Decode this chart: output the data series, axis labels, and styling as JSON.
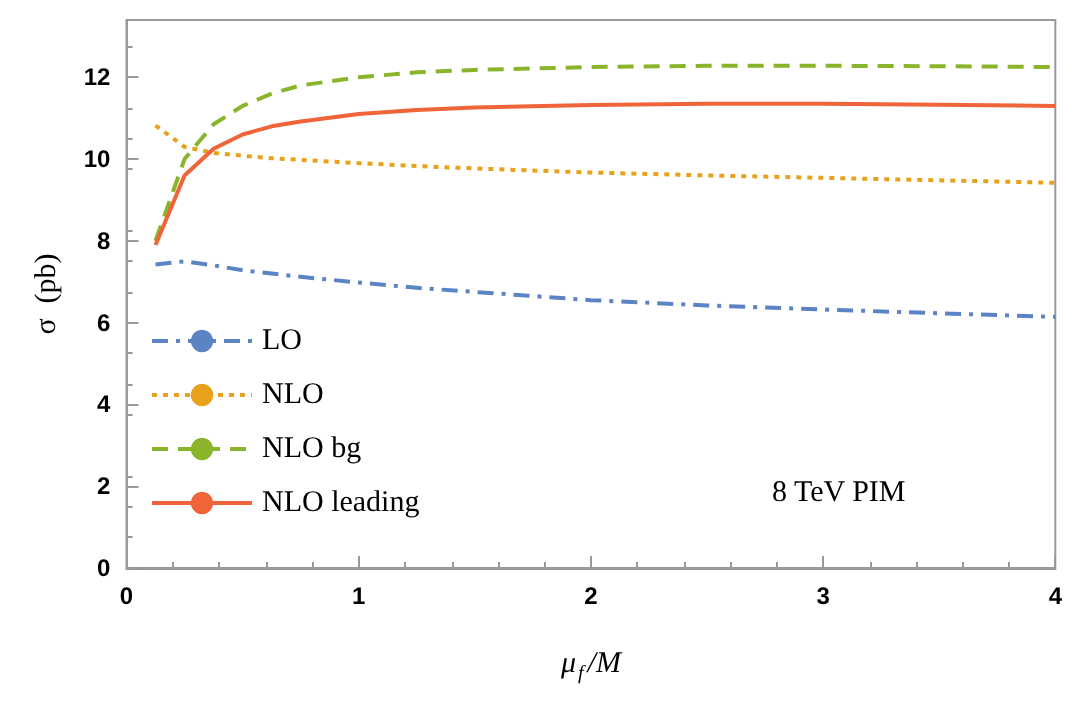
{
  "chart_data": {
    "type": "line",
    "xlabel": "μ$_{f}$/M",
    "ylabel": "σ  (pb)",
    "x": [
      0.125,
      0.25,
      0.375,
      0.5,
      0.625,
      0.75,
      1,
      1.25,
      1.5,
      2,
      2.5,
      3,
      3.5,
      4
    ],
    "series": [
      {
        "name": "LO",
        "color": "#5b84c4",
        "line_style": "dashdot",
        "values": [
          7.42,
          7.5,
          7.4,
          7.28,
          7.2,
          7.12,
          6.98,
          6.85,
          6.75,
          6.55,
          6.42,
          6.32,
          6.23,
          6.14
        ]
      },
      {
        "name": "NLO",
        "color": "#e8a11b",
        "line_style": "dotted",
        "values": [
          10.82,
          10.3,
          10.15,
          10.08,
          10.02,
          9.98,
          9.9,
          9.83,
          9.77,
          9.67,
          9.6,
          9.54,
          9.48,
          9.42
        ]
      },
      {
        "name": "NLO bg",
        "color": "#8ab52a",
        "line_style": "dashed",
        "values": [
          8.0,
          10.0,
          10.85,
          11.3,
          11.6,
          11.8,
          12.0,
          12.12,
          12.18,
          12.25,
          12.28,
          12.28,
          12.27,
          12.25
        ]
      },
      {
        "name": "NLO leading",
        "color": "#f0643a",
        "line_style": "solid",
        "values": [
          7.9,
          9.6,
          10.25,
          10.6,
          10.8,
          10.92,
          11.1,
          11.2,
          11.26,
          11.32,
          11.35,
          11.35,
          11.33,
          11.3
        ]
      }
    ],
    "xlim": [
      0,
      4
    ],
    "xticks": [
      0,
      1,
      2,
      3,
      4
    ],
    "ylim": [
      0,
      13.4
    ],
    "yticks": [
      0,
      2,
      4,
      6,
      8,
      10,
      12
    ],
    "grid": false,
    "legend": "left",
    "marker": "none",
    "annotations": [
      "8 TeV PIM"
    ]
  }
}
